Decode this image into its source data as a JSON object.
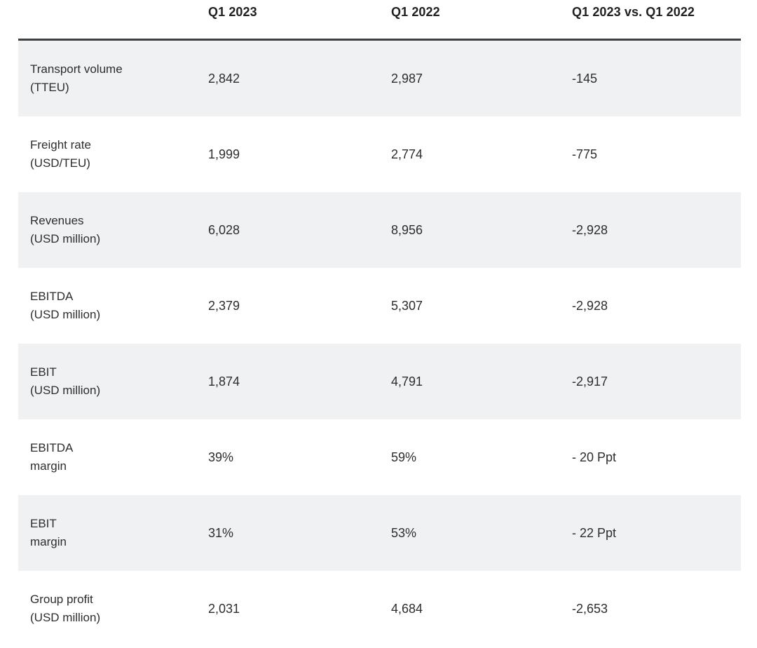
{
  "table": {
    "header": {
      "metric": "",
      "col1": "Q1 2023",
      "col2": "Q1 2022",
      "col3": "Q1 2023 vs. Q1 2022"
    },
    "rows": [
      {
        "label1": "Transport volume",
        "label2": "(TTEU)",
        "q1_2023": "2,842",
        "q1_2022": "2,987",
        "change": "-145"
      },
      {
        "label1": "Freight rate",
        "label2": "(USD/TEU)",
        "q1_2023": "1,999",
        "q1_2022": "2,774",
        "change": "-775"
      },
      {
        "label1": "Revenues",
        "label2": "(USD million)",
        "q1_2023": "6,028",
        "q1_2022": "8,956",
        "change": "-2,928"
      },
      {
        "label1": "EBITDA",
        "label2": "(USD million)",
        "q1_2023": "2,379",
        "q1_2022": "5,307",
        "change": "-2,928"
      },
      {
        "label1": "EBIT",
        "label2": "(USD million)",
        "q1_2023": "1,874",
        "q1_2022": "4,791",
        "change": "-2,917"
      },
      {
        "label1": "EBITDA",
        "label2": "margin",
        "q1_2023": "39%",
        "q1_2022": "59%",
        "change": "- 20 Ppt"
      },
      {
        "label1": "EBIT",
        "label2": "margin",
        "q1_2023": "31%",
        "q1_2022": "53%",
        "change": "- 22 Ppt"
      },
      {
        "label1": "Group profit",
        "label2": "(USD million)",
        "q1_2023": "2,031",
        "q1_2022": "4,684",
        "change": "-2,653"
      }
    ],
    "colors": {
      "alt_row_background": "#f0f1f3",
      "header_rule": "#3f4043",
      "text": "#2c2d2f",
      "header_text": "#202124"
    }
  }
}
